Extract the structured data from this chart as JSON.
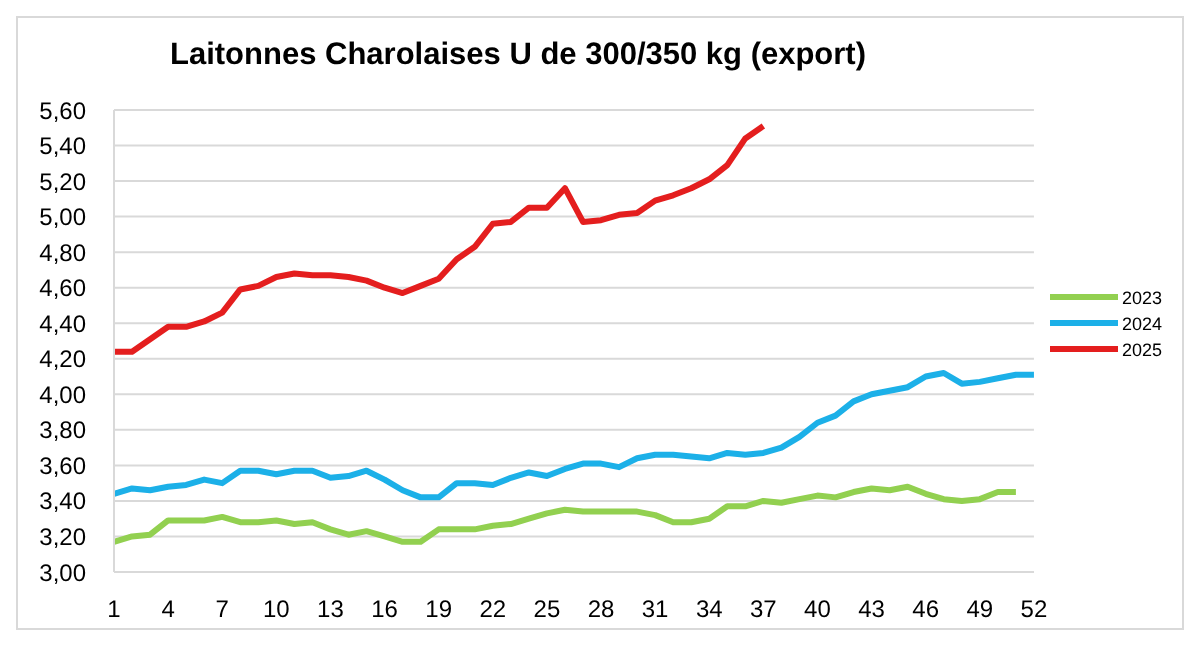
{
  "chart_data": {
    "type": "line",
    "title": "Laitonnes Charolaises U de 300/350 kg (export)",
    "x": [
      1,
      2,
      3,
      4,
      5,
      6,
      7,
      8,
      9,
      10,
      11,
      12,
      13,
      14,
      15,
      16,
      17,
      18,
      19,
      20,
      21,
      22,
      23,
      24,
      25,
      26,
      27,
      28,
      29,
      30,
      31,
      32,
      33,
      34,
      35,
      36,
      37,
      38,
      39,
      40,
      41,
      42,
      43,
      44,
      45,
      46,
      47,
      48,
      49,
      50,
      51,
      52
    ],
    "xlim": [
      1,
      52
    ],
    "xticks": [
      1,
      4,
      7,
      10,
      13,
      16,
      19,
      22,
      25,
      28,
      31,
      34,
      37,
      40,
      43,
      46,
      49,
      52
    ],
    "ylim": [
      3,
      5.6
    ],
    "yticks": [
      {
        "value": 3,
        "label": "3,00"
      },
      {
        "value": 3.2,
        "label": "3,20"
      },
      {
        "value": 3.4,
        "label": "3,40"
      },
      {
        "value": 3.6,
        "label": "3,60"
      },
      {
        "value": 3.8,
        "label": "3,80"
      },
      {
        "value": 4,
        "label": "4,00"
      },
      {
        "value": 4.2,
        "label": "4,20"
      },
      {
        "value": 4.4,
        "label": "4,40"
      },
      {
        "value": 4.6,
        "label": "4,60"
      },
      {
        "value": 4.8,
        "label": "4,80"
      },
      {
        "value": 5,
        "label": "5,00"
      },
      {
        "value": 5.2,
        "label": "5,20"
      },
      {
        "value": 5.4,
        "label": "5,40"
      },
      {
        "value": 5.6,
        "label": "5,60"
      }
    ],
    "grid": "y",
    "legend": "right",
    "marker": "none",
    "line_style": "solid",
    "series": [
      {
        "name": "2023",
        "color": "#92d050",
        "values": [
          3.17,
          3.2,
          3.21,
          3.29,
          3.29,
          3.29,
          3.31,
          3.28,
          3.28,
          3.29,
          3.27,
          3.28,
          3.24,
          3.21,
          3.23,
          3.2,
          3.17,
          3.17,
          3.24,
          3.24,
          3.24,
          3.26,
          3.27,
          3.3,
          3.33,
          3.35,
          3.34,
          3.34,
          3.34,
          3.34,
          3.32,
          3.28,
          3.28,
          3.3,
          3.37,
          3.37,
          3.4,
          3.39,
          3.41,
          3.43,
          3.42,
          3.45,
          3.47,
          3.46,
          3.48,
          3.44,
          3.41,
          3.4,
          3.41,
          3.45,
          3.45,
          null
        ]
      },
      {
        "name": "2024",
        "color": "#1cb0e8",
        "values": [
          3.44,
          3.47,
          3.46,
          3.48,
          3.49,
          3.52,
          3.5,
          3.57,
          3.57,
          3.55,
          3.57,
          3.57,
          3.53,
          3.54,
          3.57,
          3.52,
          3.46,
          3.42,
          3.42,
          3.5,
          3.5,
          3.49,
          3.53,
          3.56,
          3.54,
          3.58,
          3.61,
          3.61,
          3.59,
          3.64,
          3.66,
          3.66,
          3.65,
          3.64,
          3.67,
          3.66,
          3.67,
          3.7,
          3.76,
          3.84,
          3.88,
          3.96,
          4.0,
          4.02,
          4.04,
          4.1,
          4.12,
          4.06,
          4.07,
          4.09,
          4.11,
          4.11
        ]
      },
      {
        "name": "2025",
        "color": "#e41e1e",
        "values": [
          4.24,
          4.24,
          4.31,
          4.38,
          4.38,
          4.41,
          4.46,
          4.59,
          4.61,
          4.66,
          4.68,
          4.67,
          4.67,
          4.66,
          4.64,
          4.6,
          4.57,
          4.61,
          4.65,
          4.76,
          4.83,
          4.96,
          4.97,
          5.05,
          5.05,
          5.16,
          4.97,
          4.98,
          5.01,
          5.02,
          5.09,
          5.12,
          5.16,
          5.21,
          5.29,
          5.44,
          5.51,
          null,
          null,
          null,
          null,
          null,
          null,
          null,
          null,
          null,
          null,
          null,
          null,
          null,
          null,
          null
        ]
      }
    ]
  }
}
